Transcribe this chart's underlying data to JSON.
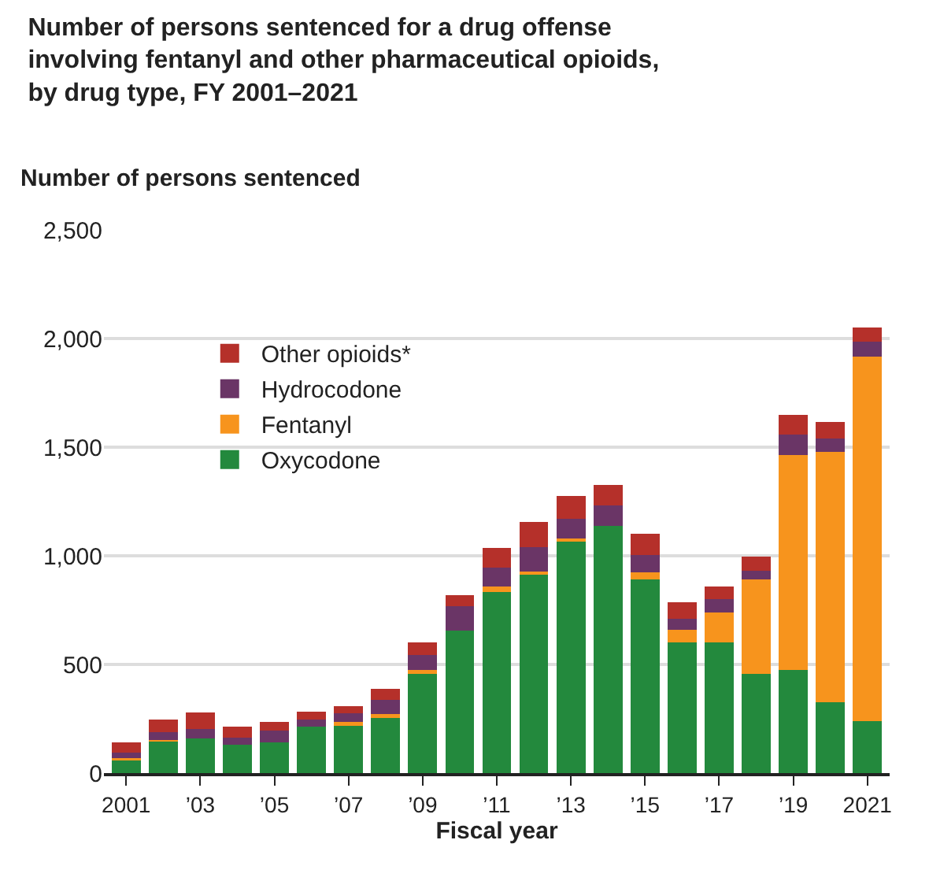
{
  "chart_data": {
    "type": "bar",
    "stacked": true,
    "title": "Number of persons sentenced for a drug offense involving fentanyl and other pharmaceutical opioids, by drug type, FY 2001–2021",
    "ylabel": "Number of persons sentenced",
    "xlabel": "Fiscal year",
    "categories": [
      "2001",
      null,
      "’03",
      null,
      "’05",
      null,
      "’07",
      null,
      "’09",
      null,
      "’11",
      null,
      "’13",
      null,
      "’15",
      null,
      "’17",
      null,
      "’19",
      null,
      "2021"
    ],
    "series": [
      {
        "name": "Oxycodone",
        "color": "#23893d",
        "values": [
          65,
          148,
          160,
          131,
          143,
          214,
          224,
          259,
          457,
          655,
          833,
          914,
          1071,
          1136,
          890,
          602,
          602,
          455,
          474,
          326,
          240
        ]
      },
      {
        "name": "Fentanyl",
        "color": "#f7941d",
        "values": [
          3,
          3,
          0,
          0,
          0,
          0,
          10,
          12,
          17,
          0,
          26,
          12,
          10,
          0,
          33,
          57,
          138,
          436,
          990,
          1152,
          1676
        ]
      },
      {
        "name": "Hydrocodone",
        "color": "#6a3566",
        "values": [
          25,
          38,
          43,
          31,
          52,
          33,
          43,
          67,
          71,
          114,
          88,
          114,
          88,
          95,
          81,
          50,
          62,
          40,
          95,
          62,
          71
        ]
      },
      {
        "name": "Other opioids*",
        "color": "#b5302a",
        "values": [
          50,
          59,
          76,
          52,
          41,
          34,
          32,
          48,
          55,
          50,
          88,
          115,
          105,
          95,
          98,
          76,
          55,
          67,
          90,
          76,
          64
        ]
      }
    ],
    "ylim": [
      0,
      2500
    ],
    "yticks": [
      0,
      {
        "value": 500,
        "label": "500"
      },
      {
        "value": 1000,
        "label": "1,000"
      },
      {
        "value": 1500,
        "label": "1,500"
      },
      {
        "value": 2000,
        "label": "2,000"
      },
      {
        "value": 2500,
        "label": "2,500"
      }
    ],
    "grid": "y",
    "legend": "top left"
  }
}
